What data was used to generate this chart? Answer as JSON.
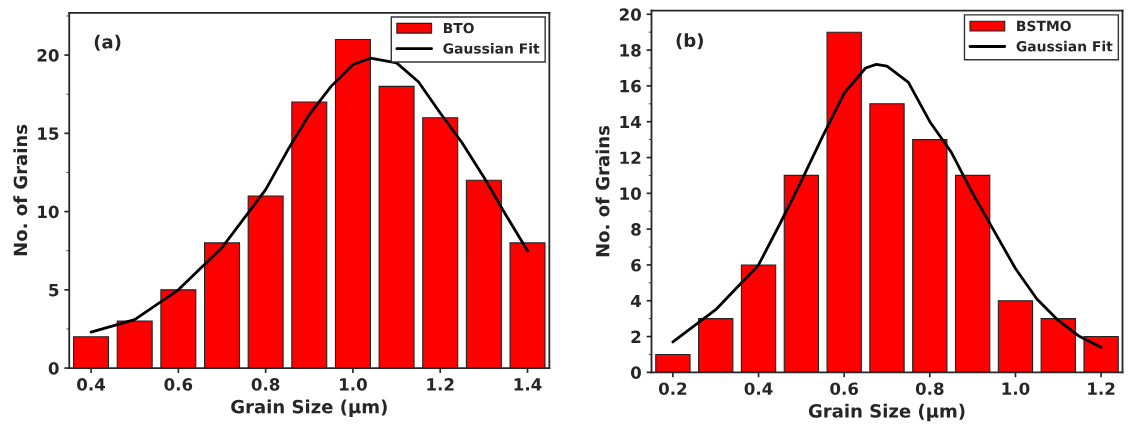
{
  "chart_data": [
    {
      "type": "bar",
      "xlabel": "Grain Size (μm)",
      "ylabel": "No. of Grains",
      "annotations": [
        "(a)"
      ],
      "xlim": [
        0.35,
        1.45
      ],
      "xticks": [
        {
          "value": 0.4,
          "label": "0.4"
        },
        {
          "value": 0.6,
          "label": "0.6"
        },
        {
          "value": 0.8,
          "label": "0.8"
        },
        {
          "value": 1.0,
          "label": "1.0"
        },
        {
          "value": 1.2,
          "label": "1.2"
        },
        {
          "value": 1.4,
          "label": "1.4"
        }
      ],
      "ylim": [
        0,
        22.7
      ],
      "yticks": [
        0,
        5,
        10,
        15,
        20
      ],
      "legend": "top right",
      "series": [
        {
          "name": "BTO",
          "color": "#ff0000",
          "x": [
            0.4,
            0.5,
            0.6,
            0.7,
            0.8,
            0.9,
            1.0,
            1.1,
            1.2,
            1.3,
            1.4
          ],
          "values": [
            2,
            3,
            5,
            8,
            11,
            17,
            21,
            18,
            16,
            12,
            8
          ]
        },
        {
          "name": "Gaussian Fit",
          "type": "line",
          "color": "#000000",
          "x": [
            0.4,
            0.5,
            0.6,
            0.7,
            0.8,
            0.85,
            0.9,
            0.95,
            1.0,
            1.04,
            1.1,
            1.15,
            1.2,
            1.25,
            1.3,
            1.35,
            1.4
          ],
          "values": [
            2.3,
            3.1,
            5.0,
            7.7,
            11.4,
            13.9,
            16.2,
            18.0,
            19.4,
            19.8,
            19.5,
            18.3,
            16.3,
            14.4,
            12.2,
            9.8,
            7.5
          ]
        }
      ]
    },
    {
      "type": "bar",
      "xlabel": "Grain Size (μm)",
      "ylabel": "No. of Grains",
      "annotations": [
        "(b)"
      ],
      "xlim": [
        0.15,
        1.25
      ],
      "xticks": [
        0.2,
        0.4,
        0.6,
        0.8,
        {
          "value": 1.0,
          "label": "1.0"
        },
        1.2
      ],
      "ylim": [
        0,
        20.2
      ],
      "yticks": [
        0,
        2,
        4,
        6,
        8,
        10,
        12,
        14,
        16,
        18,
        20
      ],
      "legend": "top right",
      "series": [
        {
          "name": "BSTMO",
          "color": "#ff0000",
          "x": [
            0.2,
            0.3,
            0.4,
            0.5,
            0.6,
            0.7,
            0.8,
            0.9,
            1.0,
            1.1,
            1.2
          ],
          "values": [
            1,
            3,
            6,
            11,
            19,
            15,
            13,
            11,
            4,
            3,
            2
          ]
        },
        {
          "name": "Gaussian Fit",
          "type": "line",
          "color": "#000000",
          "x": [
            0.2,
            0.3,
            0.4,
            0.45,
            0.5,
            0.55,
            0.6,
            0.65,
            0.675,
            0.7,
            0.75,
            0.8,
            0.85,
            0.9,
            0.95,
            1.0,
            1.05,
            1.1,
            1.15,
            1.2
          ],
          "values": [
            1.7,
            3.5,
            6.0,
            8.3,
            10.7,
            13.2,
            15.6,
            17.0,
            17.2,
            17.1,
            16.2,
            14.0,
            12.3,
            10.0,
            7.9,
            5.8,
            4.1,
            2.9,
            2.0,
            1.4
          ]
        }
      ]
    }
  ]
}
